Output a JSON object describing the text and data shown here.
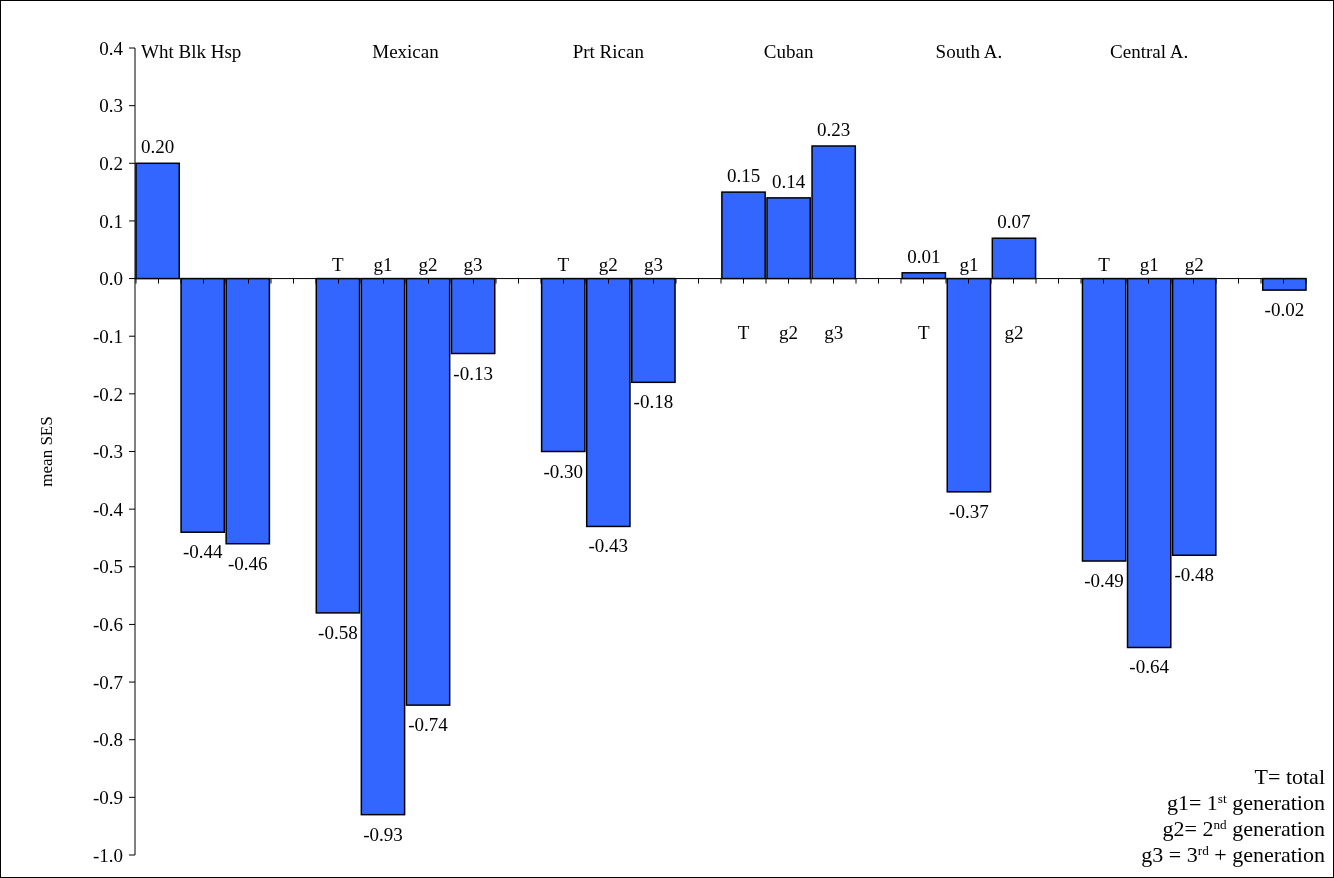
{
  "chart_data": {
    "type": "bar",
    "ylabel": "mean SES",
    "categories": [
      null,
      null,
      null,
      null,
      "T",
      "g1",
      "g2",
      "g3",
      null,
      "T",
      "g2",
      "g3",
      null,
      "T",
      "g2",
      "g3",
      null,
      "T",
      "g1",
      "g2",
      null,
      "T",
      "g1",
      "g2",
      null,
      null
    ],
    "values": [
      0.2,
      -0.44,
      -0.46,
      null,
      -0.58,
      -0.93,
      -0.74,
      -0.13,
      null,
      -0.3,
      -0.43,
      -0.18,
      null,
      0.15,
      0.14,
      0.23,
      null,
      0.01,
      -0.37,
      0.07,
      null,
      -0.49,
      -0.64,
      -0.48,
      null,
      -0.02
    ],
    "value_labels": [
      "0.20",
      "-0.44",
      "-0.46",
      null,
      "-0.58",
      "-0.93",
      "-0.74",
      "-0.13",
      null,
      "-0.30",
      "-0.43",
      "-0.18",
      null,
      "0.15",
      "0.14",
      "0.23",
      null,
      "0.01",
      "-0.37",
      "0.07",
      null,
      "-0.49",
      "-0.64",
      "-0.48",
      null,
      "-0.02"
    ],
    "color": "#3366ff",
    "ylim": [
      -1.0,
      0.4
    ],
    "yticks": [
      0.4,
      0.3,
      0.2,
      0.1,
      {
        "value": 0,
        "label": "0.0"
      },
      -0.1,
      -0.2,
      -0.3,
      -0.4,
      -0.5,
      -0.6,
      -0.7,
      -0.8,
      -0.9,
      {
        "value": -1.0,
        "label": "-1.0"
      }
    ],
    "annotations": [
      "Wht Blk Hsp",
      "Mexican",
      "Prt Rican",
      "Cuban",
      "South A.",
      "Central A.",
      "T= total",
      "g1= 1$^{st}$ generation",
      "g2= 2$^{nd}$ generation",
      "g3 = 3$^{rd}$ + generation"
    ]
  }
}
